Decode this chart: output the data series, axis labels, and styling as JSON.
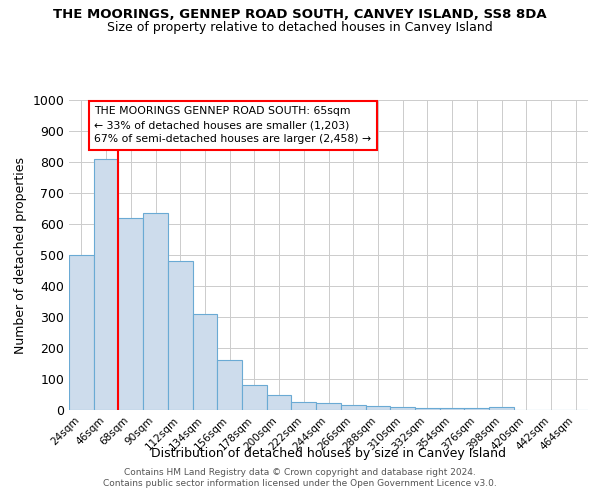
{
  "title": "THE MOORINGS, GENNEP ROAD SOUTH, CANVEY ISLAND, SS8 8DA",
  "subtitle": "Size of property relative to detached houses in Canvey Island",
  "xlabel": "Distribution of detached houses by size in Canvey Island",
  "ylabel": "Number of detached properties",
  "bar_color": "#cddcec",
  "bar_edge_color": "#6aaad4",
  "grid_color": "#cccccc",
  "background_color": "#ffffff",
  "categories": [
    "24sqm",
    "46sqm",
    "68sqm",
    "90sqm",
    "112sqm",
    "134sqm",
    "156sqm",
    "178sqm",
    "200sqm",
    "222sqm",
    "244sqm",
    "266sqm",
    "288sqm",
    "310sqm",
    "332sqm",
    "354sqm",
    "376sqm",
    "398sqm",
    "420sqm",
    "442sqm",
    "464sqm"
  ],
  "values": [
    500,
    810,
    620,
    635,
    480,
    310,
    160,
    80,
    47,
    25,
    22,
    17,
    12,
    10,
    8,
    7,
    6,
    10,
    0,
    0,
    0
  ],
  "ylim": [
    0,
    1000
  ],
  "yticks": [
    0,
    100,
    200,
    300,
    400,
    500,
    600,
    700,
    800,
    900,
    1000
  ],
  "red_line_index": 2,
  "annotation_text_line1": "THE MOORINGS GENNEP ROAD SOUTH: 65sqm",
  "annotation_text_line2": "← 33% of detached houses are smaller (1,203)",
  "annotation_text_line3": "67% of semi-detached houses are larger (2,458) →",
  "footer_line1": "Contains HM Land Registry data © Crown copyright and database right 2024.",
  "footer_line2": "Contains public sector information licensed under the Open Government Licence v3.0."
}
